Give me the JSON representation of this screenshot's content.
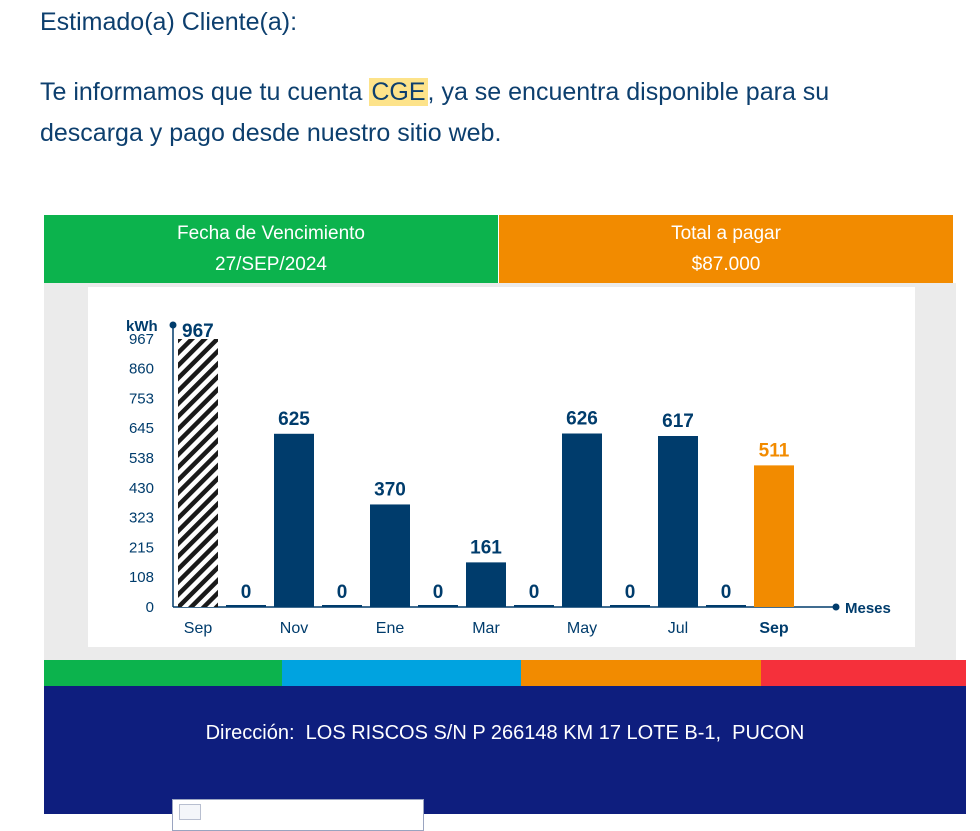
{
  "greeting": "Estimado(a) Cliente(a):",
  "intro": {
    "before": "Te informamos que tu cuenta ",
    "highlight": "CGE",
    "after": ", ya se encuentra disponible para su descarga y pago desde nuestro sitio web."
  },
  "summary": {
    "due": {
      "label": "Fecha de Vencimiento",
      "value": "27/SEP/2024"
    },
    "total": {
      "label": "Total a pagar",
      "value": "$87.000"
    }
  },
  "chart_data": {
    "type": "bar",
    "ylabel": "kWh",
    "xlabel": "Meses",
    "ylim": [
      0,
      967
    ],
    "yticks": [
      "967",
      "860",
      "753",
      "645",
      "538",
      "430",
      "323",
      "215",
      "108",
      "0"
    ],
    "top_marker": "967",
    "categories": [
      "Sep",
      "",
      "Nov",
      "",
      "Ene",
      "",
      "Mar",
      "",
      "May",
      "",
      "Jul",
      "",
      "Sep"
    ],
    "values": [
      967,
      0,
      625,
      0,
      370,
      0,
      161,
      0,
      626,
      0,
      617,
      0,
      511
    ],
    "value_labels": [
      "",
      "0",
      "625",
      "0",
      "370",
      "0",
      "161",
      "0",
      "626",
      "0",
      "617",
      "0",
      "511"
    ],
    "styles": [
      "hatched",
      "navy",
      "navy",
      "navy",
      "navy",
      "navy",
      "navy",
      "navy",
      "navy",
      "navy",
      "navy",
      "navy",
      "current"
    ],
    "colors": {
      "navy": "#003c6c",
      "current": "#f28b00",
      "hatch": "#1a1a1a"
    }
  },
  "stripe_colors": [
    "#0cb34d",
    "#00a3e0",
    "#f28b00",
    "#f5303b"
  ],
  "footer": {
    "address_label": "Dirección:",
    "address_value": "LOS RISCOS S/N P 266148 KM 17 LOTE B-1,  PUCON",
    "image_icon": "broken-image-icon"
  }
}
